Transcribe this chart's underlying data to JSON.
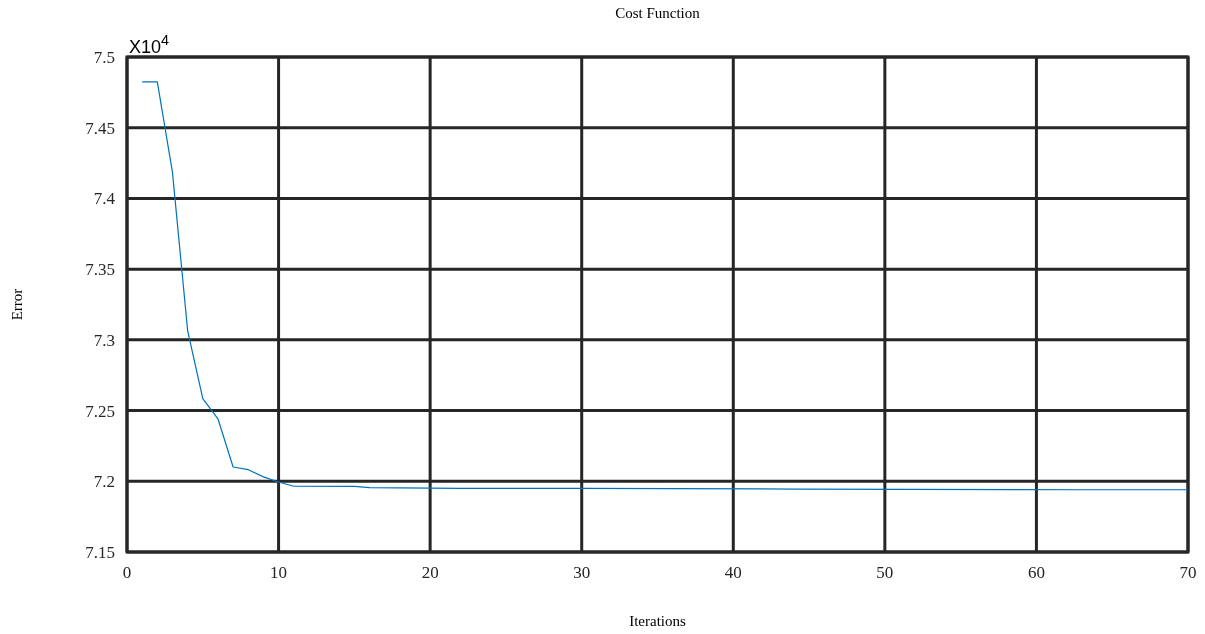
{
  "chart_data": {
    "type": "line",
    "title": "Cost Function",
    "xlabel": "Iterations",
    "ylabel": "Error",
    "annotations": [
      "X10$^{4}$"
    ],
    "x": [
      1,
      2,
      3,
      4,
      5,
      6,
      7,
      8,
      9,
      10,
      11,
      15,
      16,
      22,
      30,
      44,
      63,
      70
    ],
    "series": [
      {
        "color": "#0072bd",
        "values": [
          7.4824,
          7.4824,
          7.4184,
          7.3066,
          7.2584,
          7.2442,
          7.2101,
          7.2082,
          7.2031,
          7.1995,
          7.1965,
          7.1964,
          7.1955,
          7.195,
          7.195,
          7.1945,
          7.194,
          7.194
        ]
      }
    ],
    "xlim": [
      0,
      70
    ],
    "xticks": [
      0,
      10,
      20,
      30,
      40,
      50,
      60,
      70
    ],
    "ylim": [
      7.15,
      7.5
    ],
    "yticks": [
      7.15,
      7.2,
      7.25,
      7.3,
      7.35,
      7.4,
      7.45,
      7.5
    ],
    "grid": true,
    "marker": "none",
    "line_style": "solid"
  }
}
